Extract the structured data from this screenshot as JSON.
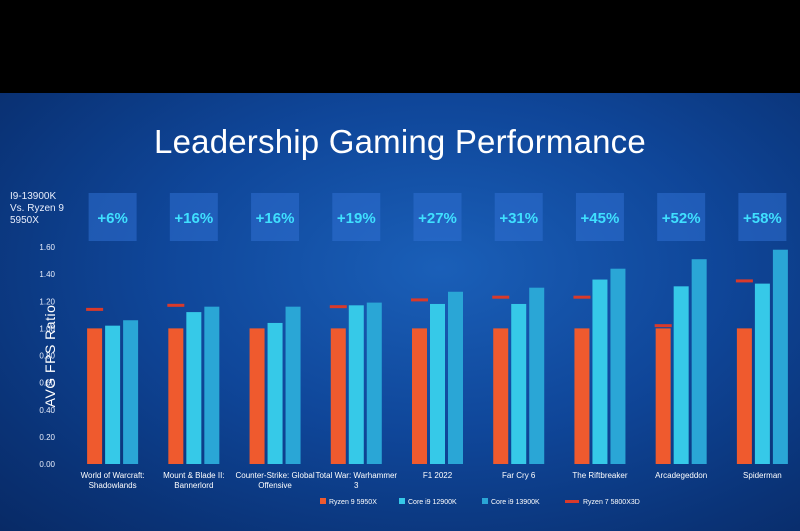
{
  "chart_data": {
    "type": "bar",
    "title": "Leadership Gaming Performance",
    "comparison_label": "I9-13900K\nVs. Ryzen 9\n5950X",
    "ylabel": "AVG FPS Ratio",
    "ylim": [
      0,
      1.6
    ],
    "yticks": [
      "0.00",
      "0.20",
      "0.40",
      "0.60",
      "0.80",
      "1.00",
      "1.20",
      "1.40",
      "1.60"
    ],
    "categories": [
      [
        "World of Warcraft:",
        "Shadowlands"
      ],
      [
        "Mount & Blade II:",
        "Bannerlord"
      ],
      [
        "Counter-Strike: Global",
        "Offensive"
      ],
      [
        "Total War: Warhammer",
        "3"
      ],
      [
        "F1 2022"
      ],
      [
        "Far Cry 6"
      ],
      [
        "The Riftbreaker"
      ],
      [
        "Arcadegeddon"
      ],
      [
        "Spiderman"
      ]
    ],
    "uplift_labels": [
      "+6%",
      "+16%",
      "+16%",
      "+19%",
      "+27%",
      "+31%",
      "+45%",
      "+52%",
      "+58%"
    ],
    "series": [
      {
        "name": "Ryzen 9 5950X",
        "type": "bar",
        "color": "#ef5a2e",
        "values": [
          1.0,
          1.0,
          1.0,
          1.0,
          1.0,
          1.0,
          1.0,
          1.0,
          1.0
        ]
      },
      {
        "name": "Core i9 12900K",
        "type": "bar",
        "color": "#36c9e8",
        "values": [
          1.02,
          1.12,
          1.04,
          1.17,
          1.18,
          1.18,
          1.36,
          1.31,
          1.33
        ]
      },
      {
        "name": "Core i9 13900K",
        "type": "bar",
        "color": "#2aa6d6",
        "values": [
          1.06,
          1.16,
          1.16,
          1.19,
          1.27,
          1.3,
          1.44,
          1.51,
          1.58
        ]
      },
      {
        "name": "Ryzen 7 5800X3D",
        "type": "marker",
        "color": "#d93a2a",
        "values": [
          1.14,
          1.17,
          null,
          1.16,
          1.21,
          1.23,
          1.23,
          1.02,
          1.35
        ]
      }
    ]
  }
}
